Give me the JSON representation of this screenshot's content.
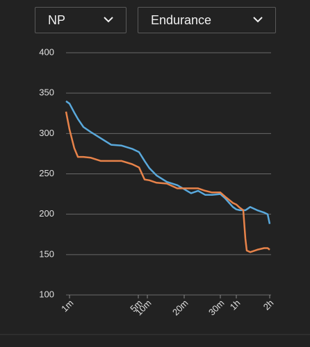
{
  "controls": {
    "metric": "NP",
    "mode": "Endurance"
  },
  "chart_data": {
    "type": "line",
    "x": [
      50,
      60,
      67,
      73,
      83,
      98,
      125,
      159,
      203,
      259,
      316,
      485,
      624,
      713,
      865,
      1053,
      1200,
      1296,
      1403,
      1517,
      1639,
      1800,
      2196,
      3096,
      3600,
      3873,
      4158,
      4345,
      4472,
      4806,
      5551,
      6414,
      6900,
      7200
    ],
    "series": [
      {
        "color": "#5aa9dc",
        "values": [
          340,
          337,
          326,
          318,
          308,
          302,
          294,
          286,
          285,
          281,
          277,
          266,
          257,
          248,
          240,
          236,
          231,
          226,
          229,
          224,
          224,
          225,
          220,
          209,
          206,
          205,
          205,
          205,
          206,
          209,
          205,
          202,
          200,
          188
        ]
      },
      {
        "color": "#e8834a",
        "values": [
          327,
          305,
          282,
          271,
          271,
          270,
          266,
          266,
          266,
          262,
          258,
          243,
          242,
          239,
          238,
          232,
          232,
          232,
          232,
          229,
          227,
          227,
          222,
          214,
          212,
          208,
          205,
          170,
          155,
          153,
          156,
          158,
          158,
          156
        ]
      }
    ],
    "xlim": [
      50,
      7200
    ],
    "xticks": [
      {
        "value": 60,
        "label": "1m"
      },
      {
        "value": 300,
        "label": "5m"
      },
      {
        "value": 600,
        "label": "10m"
      },
      {
        "value": 1200,
        "label": "20m"
      },
      {
        "value": 1800,
        "label": "30m"
      },
      {
        "value": 3600,
        "label": "1h"
      },
      {
        "value": 7200,
        "label": "2h"
      }
    ],
    "ylim": [
      100,
      400
    ],
    "yticks": [
      100,
      150,
      200,
      250,
      300,
      350,
      400
    ],
    "grid": true
  }
}
